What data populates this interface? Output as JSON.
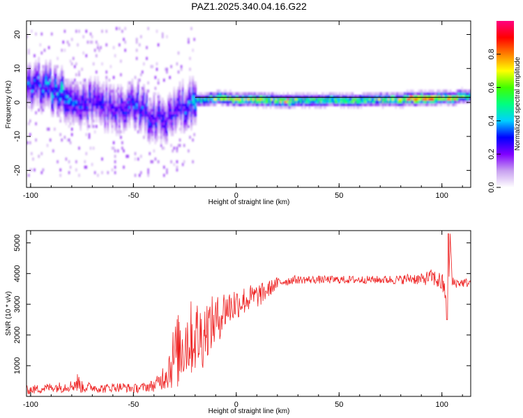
{
  "figure": {
    "title": "PAZ1.2025.340.04.16.G22"
  },
  "chart_data": [
    {
      "type": "heatmap",
      "title": "PAZ1.2025.340.04.16.G22",
      "xlabel": "Height of straight line (km)",
      "ylabel": "Frequency (Hz)",
      "xlim": [
        -102,
        114
      ],
      "ylim": [
        -25,
        24
      ],
      "xticks": [
        -100,
        -50,
        0,
        50,
        100
      ],
      "yticks": [
        -20,
        -10,
        0,
        10,
        20
      ],
      "colorbar": {
        "label": "Normalized spectral amplitude",
        "range": [
          0,
          1
        ],
        "ticks": [
          "0.0",
          "0.2",
          "0.4",
          "0.6",
          "0.8"
        ],
        "tick_values": [
          0.0,
          0.2,
          0.4,
          0.6,
          0.8
        ],
        "colors": [
          "#ffffff",
          "#c8a0f0",
          "#8000ff",
          "#0000ff",
          "#00d0ff",
          "#00ff80",
          "#40ff00",
          "#ffff00",
          "#ff8000",
          "#ff0000",
          "#ff0080"
        ]
      },
      "ridge": [
        {
          "x": -98,
          "f": 5,
          "a": 0.35
        },
        {
          "x": -92,
          "f": 4,
          "a": 0.4
        },
        {
          "x": -85,
          "f": 2,
          "a": 0.45
        },
        {
          "x": -80,
          "f": 0,
          "a": 0.35
        },
        {
          "x": -75,
          "f": -2,
          "a": 0.35
        },
        {
          "x": -70,
          "f": 1,
          "a": 0.3
        },
        {
          "x": -65,
          "f": -1,
          "a": 0.3
        },
        {
          "x": -60,
          "f": -2,
          "a": 0.3
        },
        {
          "x": -55,
          "f": -3,
          "a": 0.3
        },
        {
          "x": -50,
          "f": -1,
          "a": 0.35
        },
        {
          "x": -45,
          "f": -3,
          "a": 0.35
        },
        {
          "x": -40,
          "f": -5,
          "a": 0.3
        },
        {
          "x": -35,
          "f": -6,
          "a": 0.3
        },
        {
          "x": -30,
          "f": -4,
          "a": 0.3
        },
        {
          "x": -25,
          "f": -1,
          "a": 0.35
        },
        {
          "x": -20,
          "f": 0,
          "a": 0.45
        },
        {
          "x": -15,
          "f": 0.5,
          "a": 0.55
        },
        {
          "x": -10,
          "f": 1,
          "a": 0.65
        },
        {
          "x": -5,
          "f": 0.8,
          "a": 0.7
        },
        {
          "x": 0,
          "f": 0.5,
          "a": 0.7
        },
        {
          "x": 5,
          "f": 0.5,
          "a": 0.7
        },
        {
          "x": 10,
          "f": 0.5,
          "a": 0.75
        },
        {
          "x": 15,
          "f": 0.3,
          "a": 0.7
        },
        {
          "x": 20,
          "f": 0.3,
          "a": 0.65
        },
        {
          "x": 25,
          "f": 0,
          "a": 0.8
        },
        {
          "x": 30,
          "f": 0.3,
          "a": 0.6
        },
        {
          "x": 40,
          "f": 0.3,
          "a": 0.6
        },
        {
          "x": 50,
          "f": 0.3,
          "a": 0.62
        },
        {
          "x": 60,
          "f": 0.3,
          "a": 0.6
        },
        {
          "x": 70,
          "f": 0.5,
          "a": 0.62
        },
        {
          "x": 80,
          "f": 0.5,
          "a": 0.7
        },
        {
          "x": 85,
          "f": 0.8,
          "a": 0.88
        },
        {
          "x": 90,
          "f": 0.8,
          "a": 0.92
        },
        {
          "x": 95,
          "f": 0.8,
          "a": 0.92
        },
        {
          "x": 100,
          "f": 1,
          "a": 0.7
        },
        {
          "x": 105,
          "f": 1,
          "a": 0.85
        },
        {
          "x": 110,
          "f": 1.5,
          "a": 0.6
        },
        {
          "x": 114,
          "f": 1.5,
          "a": 0.5
        }
      ]
    },
    {
      "type": "line",
      "xlabel": "Height of straight line (km)",
      "ylabel": "SNR (10 * v/v)",
      "xlim": [
        -102,
        114
      ],
      "ylim": [
        0,
        5400
      ],
      "xticks": [
        -100,
        -50,
        0,
        50,
        100
      ],
      "yticks": [
        1000,
        2000,
        3000,
        4000,
        5000
      ],
      "series": [
        {
          "name": "SNR",
          "color": "#ee2020",
          "x": [
            -102,
            -95,
            -90,
            -85,
            -80,
            -77,
            -75,
            -70,
            -65,
            -60,
            -55,
            -50,
            -45,
            -40,
            -37,
            -35,
            -33,
            -31,
            -29,
            -27,
            -25,
            -23,
            -21,
            -19,
            -17,
            -15,
            -13,
            -11,
            -9,
            -7,
            -5,
            -3,
            -1,
            1,
            3,
            5,
            7,
            9,
            11,
            13,
            15,
            17,
            19,
            21,
            23,
            25,
            27,
            30,
            35,
            40,
            45,
            50,
            55,
            60,
            65,
            70,
            75,
            80,
            85,
            90,
            95,
            100,
            102,
            103,
            104,
            105,
            108,
            112,
            114
          ],
          "y": [
            200,
            250,
            300,
            300,
            350,
            450,
            300,
            300,
            250,
            300,
            300,
            250,
            300,
            350,
            500,
            700,
            900,
            1200,
            1400,
            1600,
            1800,
            1900,
            1900,
            2000,
            1900,
            2200,
            2300,
            2400,
            2500,
            2700,
            2900,
            2900,
            3000,
            3050,
            3100,
            3150,
            3200,
            3250,
            3300,
            3350,
            3450,
            3550,
            3650,
            3700,
            3750,
            3750,
            3800,
            3800,
            3800,
            3800,
            3800,
            3800,
            3800,
            3800,
            3800,
            3800,
            3800,
            3800,
            3850,
            3800,
            3900,
            3700,
            3300,
            2500,
            5300,
            3700,
            3700,
            3700,
            3700
          ],
          "spread": [
            150,
            150,
            150,
            180,
            180,
            350,
            200,
            150,
            150,
            150,
            150,
            150,
            150,
            200,
            300,
            500,
            700,
            1000,
            1200,
            1300,
            1300,
            1300,
            1200,
            1200,
            1200,
            1000,
            900,
            900,
            800,
            700,
            700,
            600,
            600,
            500,
            500,
            450,
            450,
            400,
            400,
            350,
            300,
            250,
            220,
            200,
            150,
            150,
            150,
            130,
            130,
            130,
            130,
            130,
            130,
            130,
            130,
            130,
            150,
            150,
            180,
            200,
            250,
            350,
            350,
            0,
            0,
            200,
            150,
            150,
            150
          ]
        }
      ]
    }
  ]
}
